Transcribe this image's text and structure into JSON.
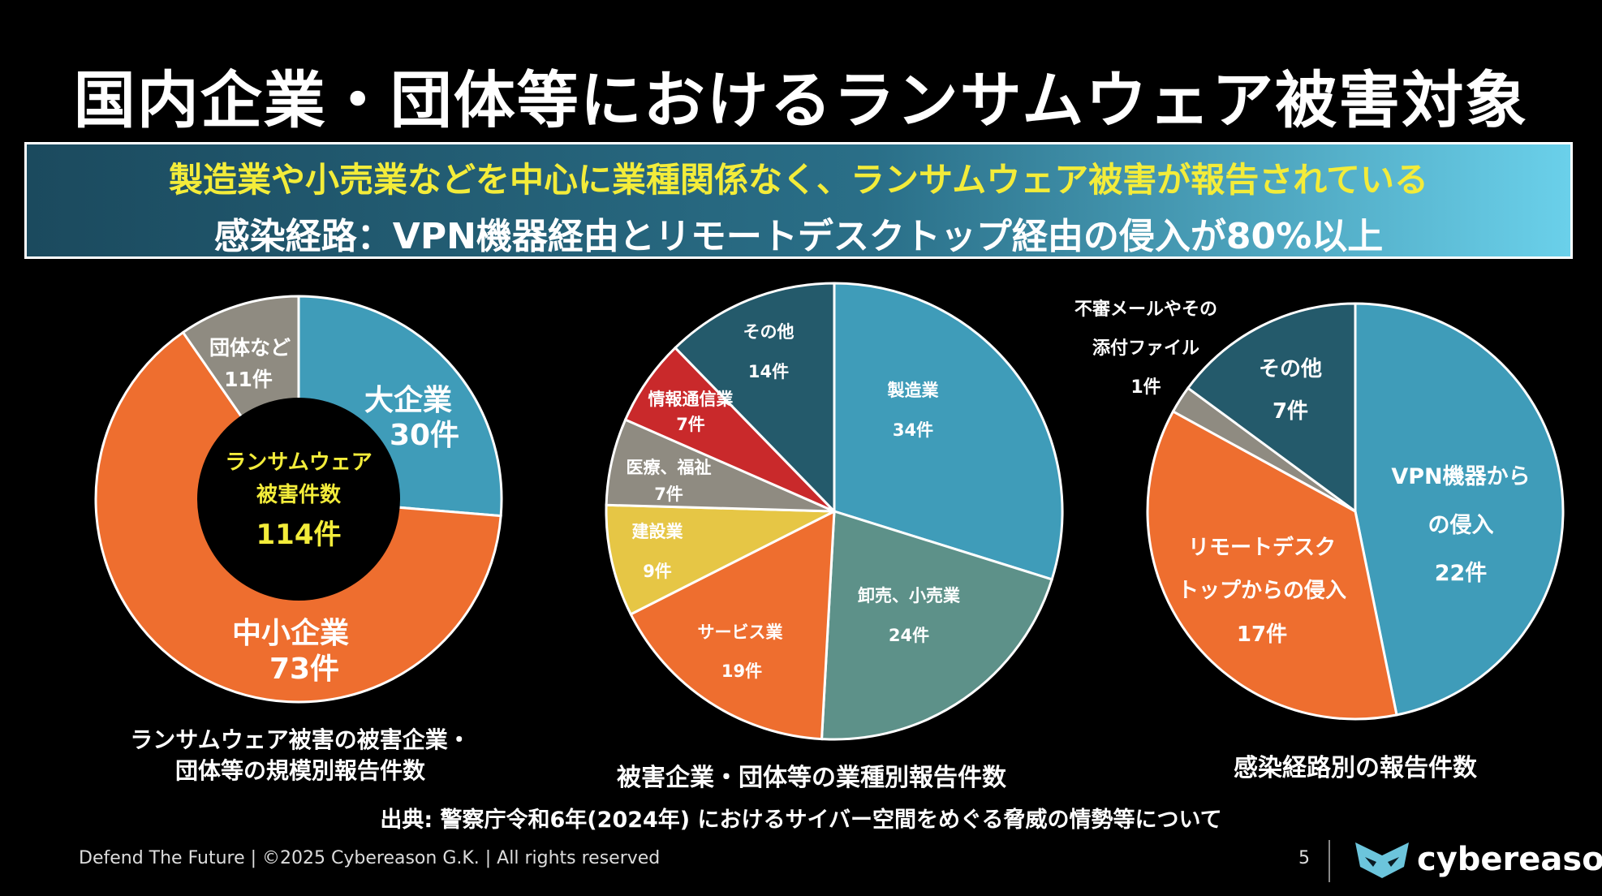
{
  "title": "国内企業・団体等におけるランサムウェア被害対象",
  "banner": {
    "line1": "製造業や小売業などを中心に業種関係なく、ランサムウェア被害が報告されている",
    "line2": "感染経路：VPN機器経由とリモートデスクトップ経由の侵入が80%以上"
  },
  "chart_data": [
    {
      "type": "pie",
      "donut": true,
      "title": "ランサムウェア被害の被害企業・団体等の規模別報告件数",
      "center_label": [
        "ランサムウェア",
        "被害件数",
        "114件"
      ],
      "categories": [
        "大企業",
        "中小企業",
        "団体など"
      ],
      "values": [
        30,
        73,
        11
      ],
      "value_labels": [
        "30件",
        "73件",
        "11件"
      ],
      "colors": [
        "#3f9cb9",
        "#ee6e2f",
        "#8f8b81"
      ]
    },
    {
      "type": "pie",
      "title": "被害企業・団体等の業種別報告件数",
      "categories": [
        "製造業",
        "卸売、小売業",
        "サービス業",
        "建設業",
        "医療、福祉",
        "情報通信業",
        "その他"
      ],
      "values": [
        34,
        24,
        19,
        9,
        7,
        7,
        14
      ],
      "value_labels": [
        "34件",
        "24件",
        "19件",
        "9件",
        "7件",
        "7件",
        "14件"
      ],
      "colors": [
        "#3f9cb9",
        "#5d9189",
        "#ee6e2f",
        "#e6c645",
        "#8f8b81",
        "#c9292b",
        "#245a6b"
      ]
    },
    {
      "type": "pie",
      "title": "感染経路別の報告件数",
      "categories": [
        "VPN機器からの侵入",
        "リモートデスクトップからの侵入",
        "不審メールやその添付ファイル",
        "その他"
      ],
      "values": [
        22,
        17,
        1,
        7
      ],
      "value_labels": [
        "22件",
        "17件",
        "1件",
        "7件"
      ],
      "colors": [
        "#3f9cb9",
        "#ee6e2f",
        "#8f8b81",
        "#245a6b"
      ]
    }
  ],
  "chart1_labels": {
    "large": "大企業",
    "large_value": "30件",
    "sme": "中小企業",
    "sme_value": "73件",
    "org": "団体など",
    "org_value": "11件"
  },
  "chart2_labels": {
    "mfg": "製造業",
    "mfg_value": "34件",
    "retail": "卸売、小売業",
    "retail_value": "24件",
    "service": "サービス業",
    "service_value": "19件",
    "construction": "建設業",
    "construction_value": "9件",
    "medical": "医療、福祉",
    "medical_value": "7件",
    "ict": "情報通信業",
    "ict_value": "7件",
    "other": "その他",
    "other_value": "14件"
  },
  "chart3_labels": {
    "vpn1": "VPN機器から",
    "vpn2": "の侵入",
    "vpn_value": "22件",
    "rdp1": "リモートデスク",
    "rdp2": "トップからの侵入",
    "rdp_value": "17件",
    "mail1": "不審メールやその",
    "mail2": "添付ファイル",
    "mail_value": "1件",
    "other": "その他",
    "other_value": "7件"
  },
  "captions": {
    "c1_line1": "ランサムウェア被害の被害企業・",
    "c1_line2": "団体等の規模別報告件数",
    "c2": "被害企業・団体等の業種別報告件数",
    "c3": "感染経路別の報告件数"
  },
  "source": "出典: 警察庁令和6年(2024年) におけるサイバー空間をめぐる脅威の情勢等について",
  "footer": "Defend The Future | ©2025 Cybereason G.K. | All rights reserved",
  "page_number": "5",
  "logo": "cybereason"
}
